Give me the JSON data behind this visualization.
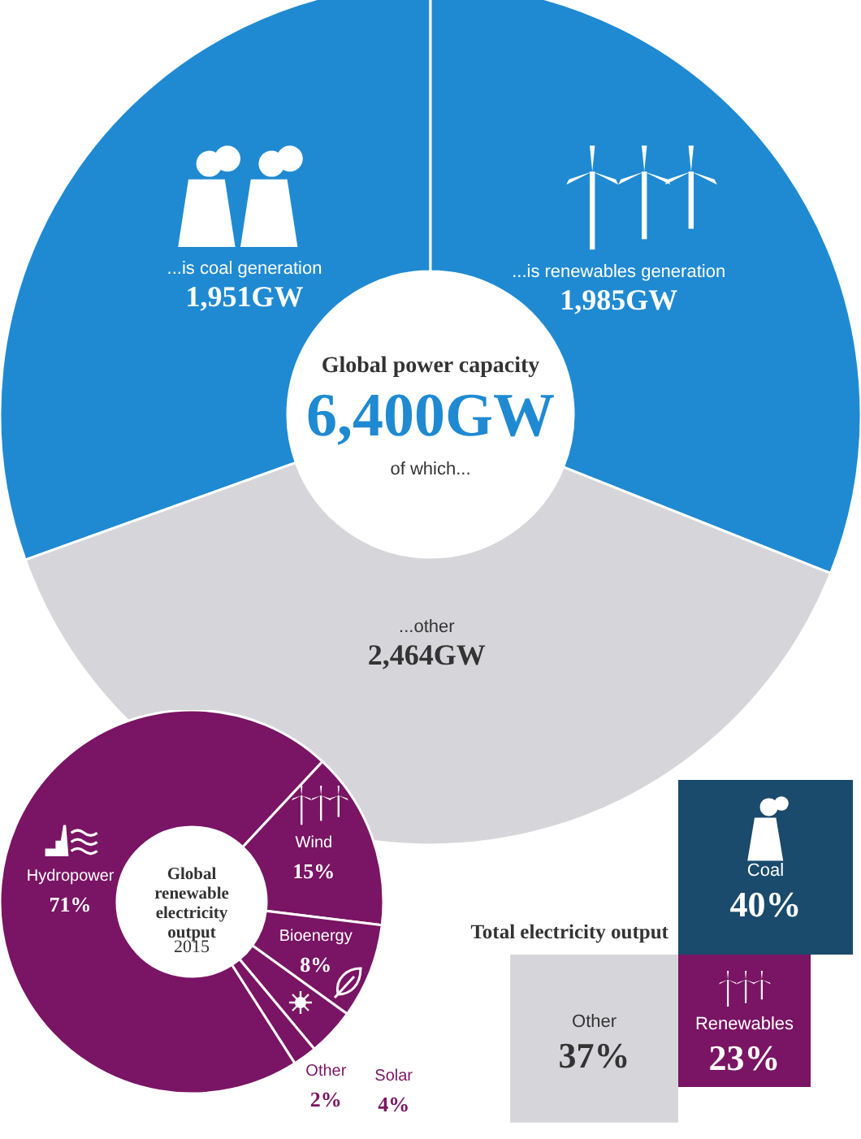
{
  "chart_data": [
    {
      "type": "donut",
      "title": "Global power capacity",
      "annotations": [
        "6,400GW",
        "of which..."
      ],
      "categories": [
        "...is coal generation",
        "...is renewables generation",
        "...other"
      ],
      "values": [
        1951,
        1985,
        2464
      ],
      "colors": [
        "#1f8ad2",
        "#1f8ad2",
        "#d6d6da"
      ],
      "value_labels": [
        "1,951GW",
        "1,985GW",
        "2,464GW"
      ]
    },
    {
      "type": "donut",
      "title": "Global renewable electricity output",
      "subtitle": "2015",
      "categories": [
        "Hydropower",
        "Wind",
        "Bioenergy",
        "Solar",
        "Other"
      ],
      "values": [
        71,
        15,
        8,
        4,
        2
      ],
      "colors": [
        "#7a1464",
        "#7a1464",
        "#7a1464",
        "#7a1464",
        "#7a1464"
      ],
      "value_labels": [
        "71%",
        "15%",
        "8%",
        "4%",
        "2%"
      ]
    },
    {
      "type": "other",
      "title": "Total electricity output",
      "categories": [
        "Coal",
        "Renewables",
        "Other"
      ],
      "values": [
        40,
        23,
        37
      ],
      "colors": [
        "#1a4a6c",
        "#7a1464",
        "#d6d6da"
      ],
      "value_labels": [
        "40%",
        "23%",
        "37%"
      ]
    }
  ]
}
